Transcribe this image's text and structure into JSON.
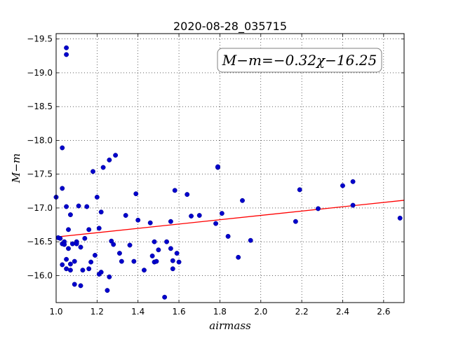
{
  "chart_data": {
    "type": "scatter",
    "title": "2020-08-28_035715",
    "xlabel": "airmass",
    "ylabel": "M−m",
    "xlim": [
      1.0,
      2.7
    ],
    "ylim": [
      -19.58,
      -15.6
    ],
    "y_inverted": true,
    "grid": true,
    "x_ticks": [
      1.0,
      1.2,
      1.4,
      1.6,
      1.8,
      2.0,
      2.2,
      2.4,
      2.6
    ],
    "y_ticks": [
      -16.0,
      -16.5,
      -17.0,
      -17.5,
      -18.0,
      -18.5,
      -19.0,
      -19.5
    ],
    "annotation": "M−m=−0.32χ−16.25",
    "fit": {
      "slope": -0.32,
      "intercept": -16.25,
      "color": "#ff0000"
    },
    "point_color": "#0000cc",
    "points": [
      [
        1.0,
        -17.16
      ],
      [
        1.01,
        -16.56
      ],
      [
        1.02,
        -16.55
      ],
      [
        1.03,
        -16.47
      ],
      [
        1.03,
        -16.16
      ],
      [
        1.03,
        -17.29
      ],
      [
        1.04,
        -16.5
      ],
      [
        1.04,
        -16.46
      ],
      [
        1.05,
        -17.02
      ],
      [
        1.05,
        -16.1
      ],
      [
        1.05,
        -16.24
      ],
      [
        1.06,
        -16.68
      ],
      [
        1.06,
        -16.4
      ],
      [
        1.07,
        -16.9
      ],
      [
        1.07,
        -16.17
      ],
      [
        1.07,
        -16.08
      ],
      [
        1.08,
        -16.47
      ],
      [
        1.09,
        -16.21
      ],
      [
        1.09,
        -15.87
      ],
      [
        1.1,
        -16.5
      ],
      [
        1.1,
        -16.47
      ],
      [
        1.11,
        -17.03
      ],
      [
        1.12,
        -16.42
      ],
      [
        1.12,
        -15.85
      ],
      [
        1.13,
        -16.08
      ],
      [
        1.14,
        -16.55
      ],
      [
        1.15,
        -17.02
      ],
      [
        1.16,
        -16.68
      ],
      [
        1.16,
        -16.1
      ],
      [
        1.17,
        -16.2
      ],
      [
        1.18,
        -17.54
      ],
      [
        1.19,
        -16.3
      ],
      [
        1.2,
        -17.16
      ],
      [
        1.21,
        -16.7
      ],
      [
        1.21,
        -16.02
      ],
      [
        1.22,
        -16.05
      ],
      [
        1.22,
        -16.94
      ],
      [
        1.23,
        -17.6
      ],
      [
        1.25,
        -15.78
      ],
      [
        1.26,
        -15.98
      ],
      [
        1.26,
        -17.71
      ],
      [
        1.27,
        -16.51
      ],
      [
        1.28,
        -16.46
      ],
      [
        1.29,
        -17.78
      ],
      [
        1.31,
        -16.33
      ],
      [
        1.32,
        -16.21
      ],
      [
        1.34,
        -16.89
      ],
      [
        1.36,
        -16.45
      ],
      [
        1.38,
        -16.21
      ],
      [
        1.39,
        -17.21
      ],
      [
        1.4,
        -16.82
      ],
      [
        1.43,
        -16.08
      ],
      [
        1.46,
        -16.78
      ],
      [
        1.47,
        -16.29
      ],
      [
        1.48,
        -16.2
      ],
      [
        1.48,
        -16.5
      ],
      [
        1.49,
        -16.21
      ],
      [
        1.5,
        -16.38
      ],
      [
        1.53,
        -15.68
      ],
      [
        1.54,
        -16.5
      ],
      [
        1.56,
        -16.4
      ],
      [
        1.56,
        -16.8
      ],
      [
        1.57,
        -16.22
      ],
      [
        1.57,
        -16.1
      ],
      [
        1.58,
        -17.26
      ],
      [
        1.59,
        -16.33
      ],
      [
        1.6,
        -16.2
      ],
      [
        1.64,
        -17.2
      ],
      [
        1.66,
        -16.88
      ],
      [
        1.7,
        -16.89
      ],
      [
        1.78,
        -16.77
      ],
      [
        1.79,
        -17.6
      ],
      [
        1.81,
        -16.92
      ],
      [
        1.84,
        -16.58
      ],
      [
        1.89,
        -16.27
      ],
      [
        1.91,
        -17.11
      ],
      [
        1.95,
        -16.52
      ],
      [
        2.17,
        -16.8
      ],
      [
        2.19,
        -17.27
      ],
      [
        2.28,
        -16.99
      ],
      [
        2.4,
        -17.33
      ],
      [
        2.45,
        -17.39
      ],
      [
        2.45,
        -17.04
      ],
      [
        2.68,
        -16.85
      ],
      [
        1.05,
        -19.27
      ],
      [
        1.05,
        -19.37
      ],
      [
        1.03,
        -17.89
      ],
      [
        1.79,
        -17.61
      ]
    ]
  }
}
